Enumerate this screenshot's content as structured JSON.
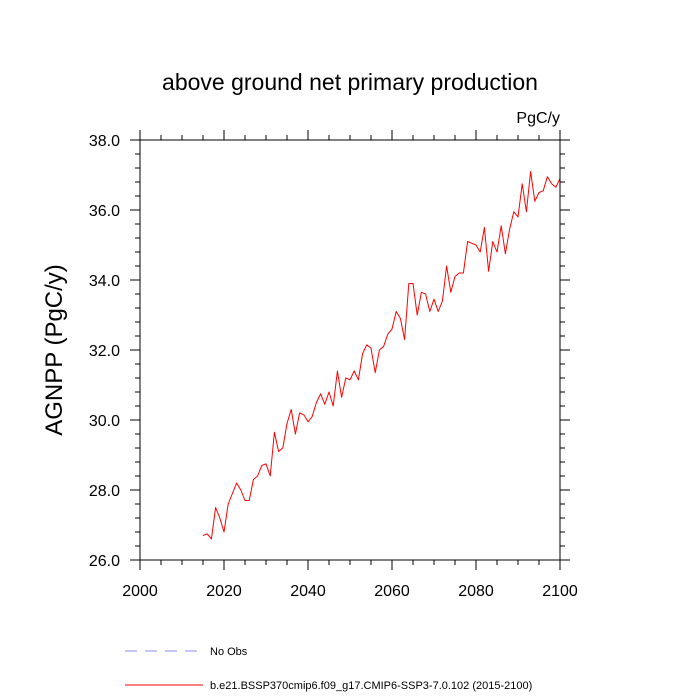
{
  "chart_data": {
    "type": "line",
    "title": "above ground net primary production",
    "units_label": "PgC/y",
    "ylabel": "AGNPP  (PgC/y)",
    "xlabel": "",
    "xlim": [
      2000,
      2100
    ],
    "ylim": [
      26.0,
      38.0
    ],
    "x_major_ticks": [
      2000,
      2020,
      2040,
      2060,
      2080,
      2100
    ],
    "x_tick_labels": [
      "2000",
      "2020",
      "2040",
      "2060",
      "2080",
      "2100"
    ],
    "y_major_ticks": [
      26.0,
      28.0,
      30.0,
      32.0,
      34.0,
      36.0,
      38.0
    ],
    "y_tick_labels": [
      "26.0",
      "28.0",
      "30.0",
      "32.0",
      "34.0",
      "36.0",
      "38.0"
    ],
    "grid": false,
    "legend_position": "bottom",
    "legend": [
      {
        "label": "No Obs",
        "color": "#8c8cff",
        "style": "dashed"
      },
      {
        "label": "b.e21.BSSP370cmip6.f09_g17.CMIP6-SSP3-7.0.102 (2015-2100)",
        "color": "#ff0000",
        "style": "solid"
      }
    ],
    "series": [
      {
        "name": "b.e21.BSSP370cmip6.f09_g17.CMIP6-SSP3-7.0.102 (2015-2100)",
        "color": "#ff0000",
        "x": [
          2015,
          2016,
          2017,
          2018,
          2019,
          2020,
          2021,
          2022,
          2023,
          2024,
          2025,
          2026,
          2027,
          2028,
          2029,
          2030,
          2031,
          2032,
          2033,
          2034,
          2035,
          2036,
          2037,
          2038,
          2039,
          2040,
          2041,
          2042,
          2043,
          2044,
          2045,
          2046,
          2047,
          2048,
          2049,
          2050,
          2051,
          2052,
          2053,
          2054,
          2055,
          2056,
          2057,
          2058,
          2059,
          2060,
          2061,
          2062,
          2063,
          2064,
          2065,
          2066,
          2067,
          2068,
          2069,
          2070,
          2071,
          2072,
          2073,
          2074,
          2075,
          2076,
          2077,
          2078,
          2079,
          2080,
          2081,
          2082,
          2083,
          2084,
          2085,
          2086,
          2087,
          2088,
          2089,
          2090,
          2091,
          2092,
          2093,
          2094,
          2095,
          2096,
          2097,
          2098,
          2099,
          2100
        ],
        "y": [
          26.7,
          26.75,
          26.6,
          27.5,
          27.2,
          26.8,
          27.6,
          27.9,
          28.2,
          28.0,
          27.7,
          27.7,
          28.3,
          28.4,
          28.7,
          28.75,
          28.4,
          29.65,
          29.1,
          29.2,
          29.9,
          30.3,
          29.6,
          30.2,
          30.15,
          29.95,
          30.1,
          30.5,
          30.75,
          30.45,
          30.8,
          30.4,
          31.4,
          30.65,
          31.2,
          31.15,
          31.4,
          31.15,
          31.9,
          32.15,
          32.05,
          31.35,
          32.0,
          32.1,
          32.45,
          32.6,
          33.1,
          32.9,
          32.3,
          33.9,
          33.9,
          33.0,
          33.65,
          33.6,
          33.1,
          33.45,
          33.1,
          33.4,
          34.4,
          33.65,
          34.1,
          34.2,
          34.2,
          35.1,
          35.05,
          35.0,
          34.8,
          35.5,
          34.25,
          35.1,
          34.8,
          35.55,
          34.75,
          35.45,
          35.95,
          35.8,
          36.75,
          35.95,
          37.1,
          36.25,
          36.5,
          36.55,
          36.95,
          36.75,
          36.65,
          36.9
        ]
      }
    ]
  }
}
